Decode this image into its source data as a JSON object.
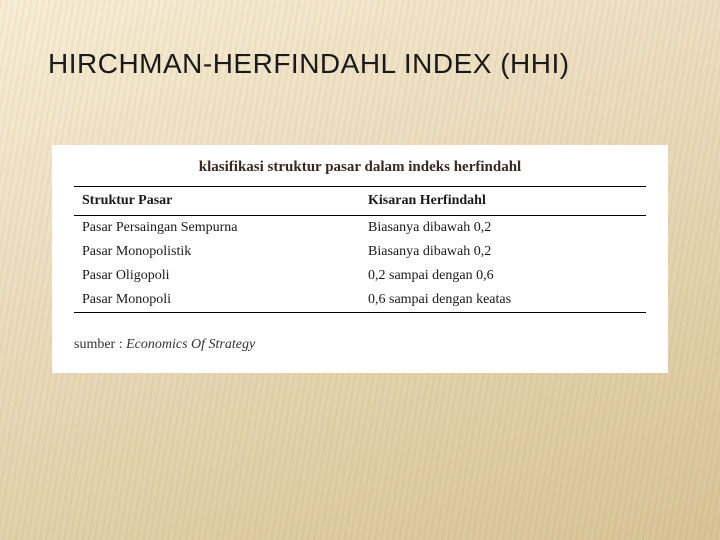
{
  "slide": {
    "title": "HIRCHMAN-HERFINDAHL INDEX (HHI)",
    "title_fontsize": 28,
    "title_color": "#1a1a1a",
    "background_gradient": [
      "#f8eed8",
      "#d5c090"
    ]
  },
  "content": {
    "background_color": "#ffffff",
    "caption": "klasifikasi struktur pasar dalam indeks herfindahl",
    "caption_fontsize": 15,
    "caption_color": "#3a2820",
    "table": {
      "columns": [
        "Struktur Pasar",
        "Kisaran Herfindahl"
      ],
      "rows": [
        [
          "Pasar Persaingan Sempurna",
          "Biasanya dibawah 0,2"
        ],
        [
          "Pasar Monopolistik",
          "Biasanya dibawah 0,2"
        ],
        [
          "Pasar Oligopoli",
          "0,2 sampai dengan 0,6"
        ],
        [
          "Pasar Monopoli",
          "0,6 sampai dengan keatas"
        ]
      ],
      "border_color": "#000000",
      "font_size": 14,
      "text_color": "#1a1a1a"
    },
    "source_prefix": "sumber : ",
    "source_title": "Economics Of Strategy"
  }
}
